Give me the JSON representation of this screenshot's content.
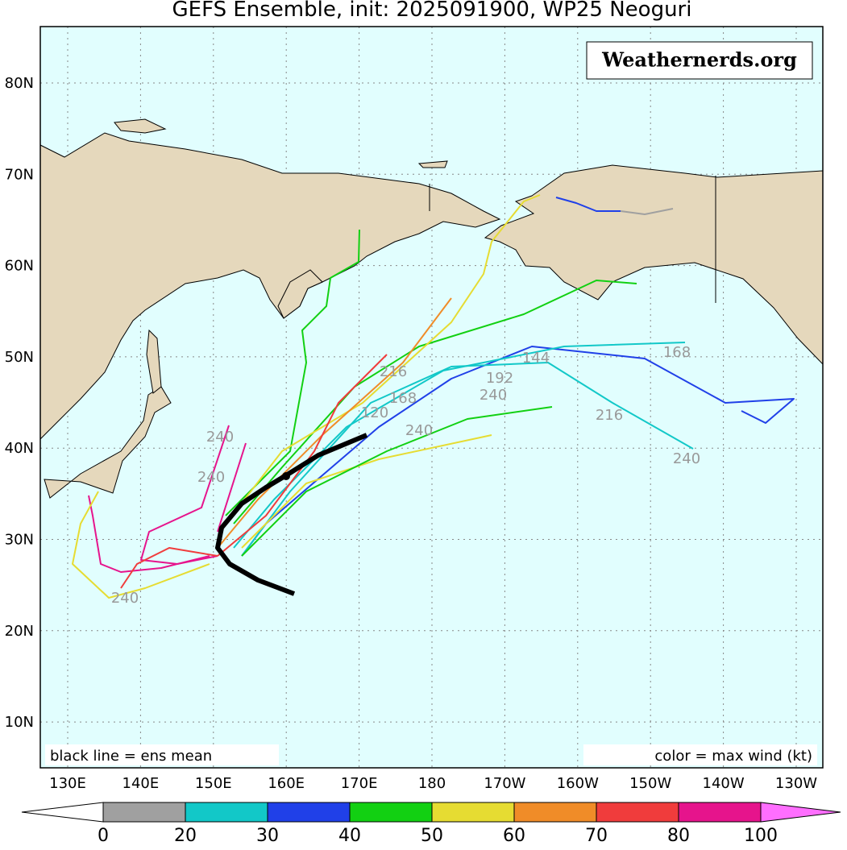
{
  "title": "GEFS Ensemble, init: 2025091900, WP25 Neoguri",
  "watermark": "Weathernerds.org",
  "lat_labels": [
    "80N",
    "70N",
    "60N",
    "50N",
    "40N",
    "30N",
    "20N",
    "10N"
  ],
  "lon_labels": [
    "130E",
    "140E",
    "150E",
    "160E",
    "170E",
    "180",
    "170W",
    "160W",
    "150W",
    "140W",
    "130W"
  ],
  "legend_left": "black line = ens mean",
  "legend_right": "color = max wind (kt)",
  "hour_labels": [
    "240",
    "240",
    "240",
    "216",
    "168",
    "192",
    "240",
    "144",
    "120",
    "240",
    "168",
    "216",
    "240"
  ],
  "colorbar": {
    "ticks": [
      0,
      20,
      30,
      40,
      50,
      60,
      70,
      80,
      100
    ],
    "colors": [
      "#a0a0a0",
      "#12c8c8",
      "#2040e8",
      "#12d012",
      "#e6dc32",
      "#f08c28",
      "#f03c3c",
      "#e6148c"
    ],
    "under_color": "#ffffff",
    "over_color": "#ff6eff"
  }
}
